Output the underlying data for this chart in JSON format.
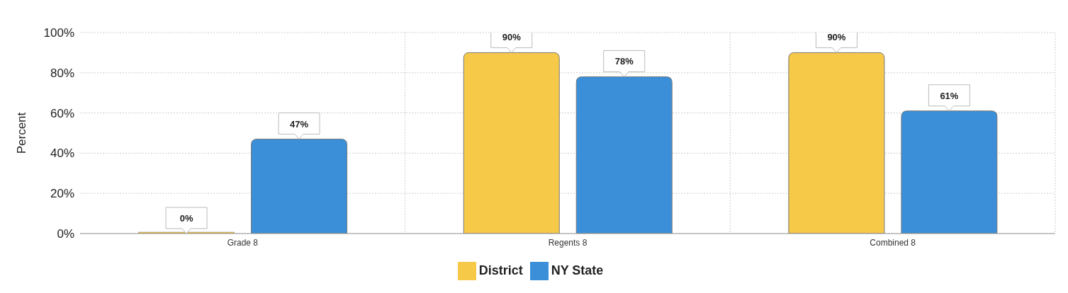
{
  "chart_data": {
    "type": "bar",
    "ylabel": "Percent",
    "categories": [
      "Grade 8",
      "Regents 8",
      "Combined 8"
    ],
    "series": [
      {
        "name": "District",
        "color": "#f7c948",
        "values": [
          0,
          90,
          90
        ],
        "value_labels": [
          "0%",
          "90%",
          "90%"
        ]
      },
      {
        "name": "NY State",
        "color": "#3a8fd8",
        "values": [
          47,
          78,
          61
        ],
        "value_labels": [
          "47%",
          "78%",
          "61%"
        ]
      }
    ],
    "ylim": [
      0,
      100
    ],
    "yticks": [
      {
        "value": 0,
        "label": "0%"
      },
      {
        "value": 20,
        "label": "20%"
      },
      {
        "value": 40,
        "label": "40%"
      },
      {
        "value": 60,
        "label": "60%"
      },
      {
        "value": 80,
        "label": "80%"
      },
      {
        "value": 100,
        "label": "100%"
      }
    ],
    "grid": true,
    "legend": "bottom"
  }
}
